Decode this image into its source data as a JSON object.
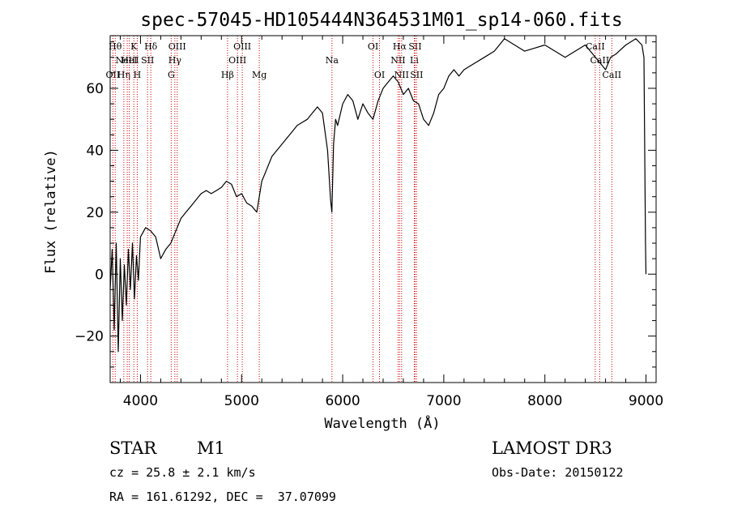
{
  "chart_data": {
    "type": "line",
    "title": "spec-57045-HD105444N364531M01_sp14-060.fits",
    "xlabel": "Wavelength (Å)",
    "ylabel": "Flux (relative)",
    "xlim": [
      3700,
      9100
    ],
    "ylim": [
      -35,
      77
    ],
    "xticks": [
      4000,
      5000,
      6000,
      7000,
      8000,
      9000
    ],
    "xtick_labels": [
      "4000",
      "5000",
      "6000",
      "7000",
      "8000",
      "9000"
    ],
    "yticks": [
      -20,
      0,
      20,
      40,
      60
    ],
    "ytick_labels": [
      "−20",
      "0",
      "20",
      "40",
      "60"
    ],
    "spectrum": {
      "x": [
        3700,
        3720,
        3740,
        3760,
        3780,
        3800,
        3820,
        3840,
        3860,
        3880,
        3900,
        3920,
        3940,
        3960,
        3980,
        4000,
        4050,
        4100,
        4150,
        4200,
        4250,
        4300,
        4350,
        4400,
        4450,
        4500,
        4550,
        4600,
        4650,
        4700,
        4750,
        4800,
        4850,
        4900,
        4950,
        5000,
        5050,
        5100,
        5150,
        5200,
        5250,
        5300,
        5350,
        5400,
        5450,
        5500,
        5550,
        5600,
        5650,
        5700,
        5750,
        5800,
        5850,
        5880,
        5893,
        5910,
        5930,
        5950,
        6000,
        6050,
        6100,
        6150,
        6200,
        6250,
        6300,
        6350,
        6400,
        6450,
        6500,
        6550,
        6600,
        6650,
        6700,
        6750,
        6800,
        6850,
        6900,
        6950,
        7000,
        7050,
        7100,
        7150,
        7200,
        7300,
        7400,
        7500,
        7600,
        7700,
        7800,
        7900,
        8000,
        8100,
        8200,
        8300,
        8400,
        8500,
        8550,
        8600,
        8650,
        8700,
        8800,
        8900,
        8960,
        8980,
        8995,
        9000
      ],
      "y": [
        -5,
        8,
        -18,
        10,
        -25,
        5,
        -15,
        3,
        -10,
        8,
        -5,
        10,
        -8,
        6,
        -2,
        12,
        15,
        14,
        12,
        5,
        8,
        10,
        14,
        18,
        20,
        22,
        24,
        26,
        27,
        26,
        27,
        28,
        30,
        29,
        25,
        26,
        23,
        22,
        20,
        30,
        34,
        38,
        40,
        42,
        44,
        46,
        48,
        49,
        50,
        52,
        54,
        52,
        40,
        24,
        20,
        42,
        50,
        48,
        55,
        58,
        56,
        50,
        55,
        52,
        50,
        56,
        60,
        62,
        64,
        62,
        58,
        60,
        56,
        55,
        50,
        48,
        52,
        58,
        60,
        64,
        66,
        64,
        66,
        68,
        70,
        72,
        76,
        74,
        72,
        73,
        74,
        72,
        70,
        72,
        74,
        70,
        68,
        66,
        70,
        71,
        74,
        76,
        74,
        70,
        10,
        0
      ]
    },
    "emission_lines": [
      {
        "wavelength": 3727,
        "label": "OII",
        "row": 2
      },
      {
        "wavelength": 3750,
        "label": "Hθ",
        "row": 0
      },
      {
        "wavelength": 3835,
        "label": "Hη",
        "row": 2
      },
      {
        "wavelength": 3869,
        "label": "NeIII",
        "row": 1
      },
      {
        "wavelength": 3889,
        "label": "HeI",
        "row": 1
      },
      {
        "wavelength": 3934,
        "label": "K",
        "row": 0
      },
      {
        "wavelength": 3968,
        "label": "H",
        "row": 2
      },
      {
        "wavelength": 4070,
        "label": "SII",
        "row": 1
      },
      {
        "wavelength": 4102,
        "label": "Hδ",
        "row": 0
      },
      {
        "wavelength": 4304,
        "label": "G",
        "row": 2
      },
      {
        "wavelength": 4340,
        "label": "Hγ",
        "row": 1
      },
      {
        "wavelength": 4363,
        "label": "OIII",
        "row": 0
      },
      {
        "wavelength": 4861,
        "label": "Hβ",
        "row": 2
      },
      {
        "wavelength": 4959,
        "label": "OIII",
        "row": 1
      },
      {
        "wavelength": 5007,
        "label": "OIII",
        "row": 0
      },
      {
        "wavelength": 5175,
        "label": "Mg",
        "row": 2
      },
      {
        "wavelength": 5894,
        "label": "Na",
        "row": 1
      },
      {
        "wavelength": 6300,
        "label": "OI",
        "row": 0
      },
      {
        "wavelength": 6364,
        "label": "OI",
        "row": 2
      },
      {
        "wavelength": 6548,
        "label": "NII",
        "row": 1
      },
      {
        "wavelength": 6563,
        "label": "Hα",
        "row": 0
      },
      {
        "wavelength": 6583,
        "label": "NII",
        "row": 2
      },
      {
        "wavelength": 6708,
        "label": "Li",
        "row": 1
      },
      {
        "wavelength": 6716,
        "label": "SII",
        "row": 0
      },
      {
        "wavelength": 6731,
        "label": "SII",
        "row": 2
      },
      {
        "wavelength": 8498,
        "label": "CaII",
        "row": 0
      },
      {
        "wavelength": 8542,
        "label": "CaII",
        "row": 1
      },
      {
        "wavelength": 8662,
        "label": "CaII",
        "row": 2
      }
    ]
  },
  "info": {
    "class": "STAR",
    "subclass": "M1",
    "survey": "LAMOST DR3",
    "cz": "cz = 25.8 ± 2.1 km/s",
    "obs_date": "Obs-Date: 20150122",
    "coords": "RA = 161.61292, DEC =  37.07099"
  },
  "colors": {
    "spectrum": "#000000",
    "line_marker": "#cc0000",
    "axes": "#000000"
  }
}
